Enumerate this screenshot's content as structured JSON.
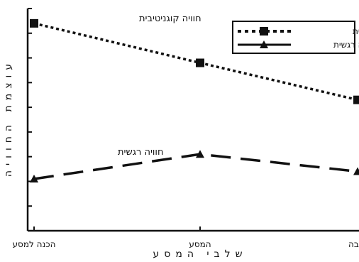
{
  "chart_data": {
    "type": "line",
    "categories": [
      "הכנה למסע",
      "המסע",
      "שיבה"
    ],
    "series": [
      {
        "name": "חוויה קוגניטיבית",
        "values": [
          8.4,
          6.8,
          5.3
        ],
        "style": "dotted",
        "marker": "square",
        "color": "#111111"
      },
      {
        "name": "חוויה רגשית",
        "values": [
          2.1,
          3.1,
          2.4
        ],
        "style": "dashed",
        "marker": "triangle",
        "color": "#111111"
      }
    ],
    "xlabel": "שלבי המסע",
    "ylabel": "עוצמת החוויה",
    "ylim": [
      0,
      9
    ],
    "yticks": [
      1,
      2,
      3,
      4,
      5,
      6,
      7,
      8,
      9
    ],
    "grid": false,
    "legend_position": "top-right",
    "annotations": [
      {
        "text": "חוויה קוגניטיבית",
        "series": 0,
        "category": 0,
        "placement": "right"
      },
      {
        "text": "חוויה רגשית",
        "series": 1,
        "category": 0,
        "placement": "above-right"
      }
    ]
  }
}
